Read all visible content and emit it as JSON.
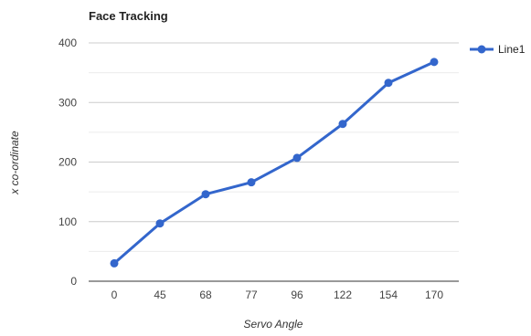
{
  "chart_data": {
    "type": "line",
    "title": "Face Tracking",
    "xlabel": "Servo Angle",
    "ylabel": "x co-ordinate",
    "categories": [
      "0",
      "45",
      "68",
      "77",
      "96",
      "122",
      "154",
      "170"
    ],
    "series": [
      {
        "name": "Line1",
        "color": "#3366cc",
        "values": [
          30,
          97,
          146,
          166,
          207,
          264,
          333,
          368
        ]
      }
    ],
    "ylim": [
      0,
      400
    ],
    "yticks": [
      "0",
      "100",
      "200",
      "300",
      "400"
    ],
    "grid": true,
    "legend": "right"
  }
}
